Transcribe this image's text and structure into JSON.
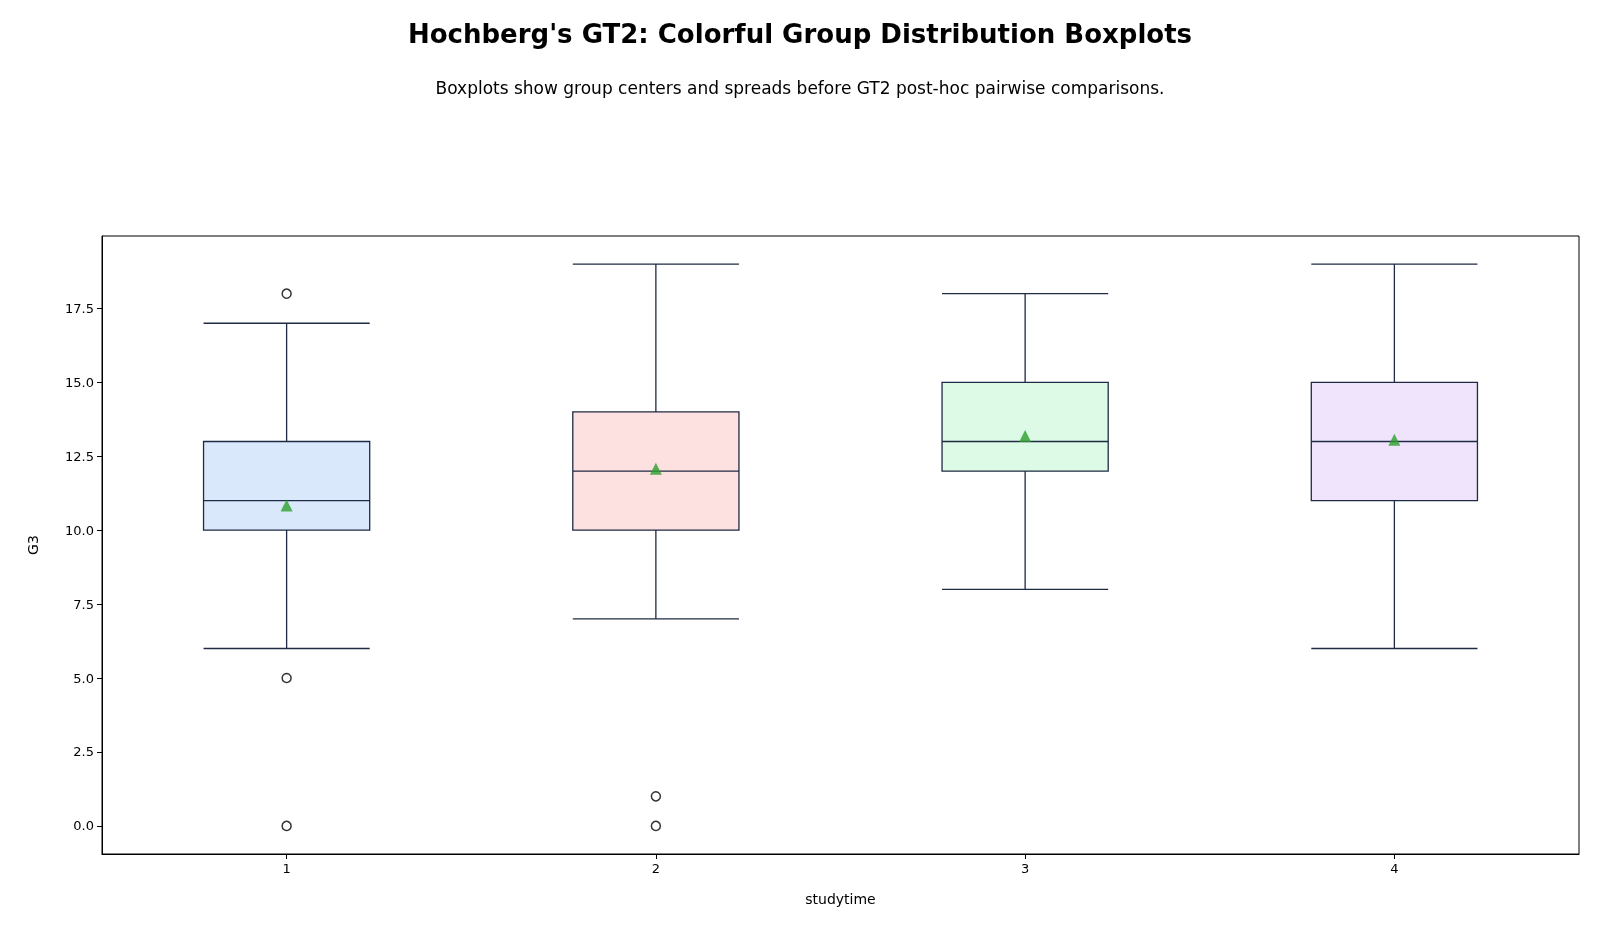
{
  "chart_data": {
    "type": "box",
    "title": "Hochberg's GT2: Colorful Group Distribution Boxplots",
    "subtitle": "Boxplots show group centers and spreads before GT2 post-hoc pairwise comparisons.",
    "xlabel": "studytime",
    "ylabel": "G3",
    "categories": [
      "1",
      "2",
      "3",
      "4"
    ],
    "colors": [
      "#dae8fc",
      "#fde0e0",
      "#dcfae6",
      "#f0e4fd"
    ],
    "boxes": [
      {
        "low": 6,
        "q1": 10,
        "median": 11,
        "q3": 13,
        "high": 17,
        "mean": 10.84,
        "outliers": [
          18,
          5,
          0
        ]
      },
      {
        "low": 7,
        "q1": 10,
        "median": 12,
        "q3": 14,
        "high": 19,
        "mean": 12.08,
        "outliers": [
          1,
          0
        ]
      },
      {
        "low": 8,
        "q1": 12,
        "median": 13,
        "q3": 15,
        "high": 18,
        "mean": 13.19
      },
      {
        "low": 6,
        "q1": 11,
        "median": 13,
        "q3": 15,
        "high": 19,
        "mean": 13.06
      }
    ],
    "ylim": [
      -0.95,
      19.95
    ],
    "yticks": [
      {
        "value": 0,
        "label": "0.0"
      },
      {
        "value": 2.5,
        "label": "2.5"
      },
      {
        "value": 5,
        "label": "5.0"
      },
      {
        "value": 7.5,
        "label": "7.5"
      },
      {
        "value": 10,
        "label": "10.0"
      },
      {
        "value": 12.5,
        "label": "12.5"
      },
      {
        "value": 15,
        "label": "15.0"
      },
      {
        "value": 17.5,
        "label": "17.5"
      }
    ]
  }
}
